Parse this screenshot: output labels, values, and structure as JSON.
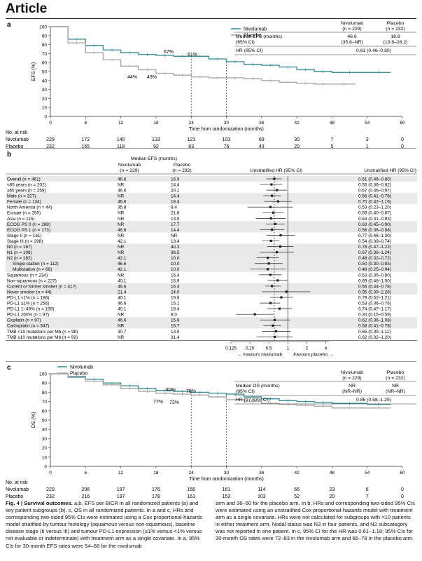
{
  "article_label": "Article",
  "panel_a": {
    "letter": "a",
    "legend": [
      "Nivolumab",
      "Placebo"
    ],
    "ylabel": "EFS (%)",
    "xlabel": "Time from randomization (months)",
    "xticks": [
      "0",
      "6",
      "12",
      "18",
      "24",
      "30",
      "36",
      "42",
      "48",
      "54",
      "60"
    ],
    "yticks": [
      "0",
      "10",
      "20",
      "30",
      "40",
      "50",
      "60",
      "70",
      "80",
      "90",
      "100"
    ],
    "annotations": [
      "67%",
      "61%",
      "44%",
      "43%"
    ],
    "summary_table": {
      "col_nivo": "Nivolumab",
      "col_nivo_n": "(n = 229)",
      "col_pbo": "Placebo",
      "col_pbo_n": "(n = 232)",
      "row1_label": "Median EFS (months)",
      "row1_label2": "(95% CI)",
      "row1_nivo": "46.6",
      "row1_nivo2": "(35.8–NR)",
      "row1_pbo": "16.9",
      "row1_pbo2": "(13.6–28.2)",
      "row2_label": "HR (95% CI)",
      "row2_value": "0.61 (0.46–0.80)"
    },
    "risk_title": "No. at risk",
    "risk_nivo_label": "Nivolumab",
    "risk_pbo_label": "Placebo",
    "risk_nivo": [
      "229",
      "172",
      "140",
      "133",
      "123",
      "103",
      "69",
      "30",
      "7",
      "3",
      "0"
    ],
    "risk_pbo": [
      "232",
      "165",
      "118",
      "92",
      "83",
      "76",
      "43",
      "20",
      "5",
      "1",
      "0"
    ]
  },
  "panel_b": {
    "letter": "b",
    "header_group": "Median EFS (months)",
    "header_nivo": "Nivolumab",
    "header_nivo_n": "(n = 229)",
    "header_pbo": "Placebo",
    "header_pbo_n": "(n = 232)",
    "header_hr_plot": "Unstratified HR (95% CI)",
    "header_hr_text": "Unstratified HR (95% CI)",
    "axis_ticks": [
      "0.125",
      "0.25",
      "0.5",
      "1",
      "2",
      "4"
    ],
    "favours_nivo": "Favours nivolumab",
    "favours_pbo": "Favours placebo",
    "rows": [
      {
        "label": "Overall (n = 461)",
        "nivo": "46.6",
        "pbo": "16.9",
        "hr": "0.61 (0.46–0.80)",
        "est": 0.61,
        "lo": 0.46,
        "hi": 0.8,
        "shade": true
      },
      {
        "label": "<65 years (n = 202)",
        "nivo": "NR",
        "pbo": "14.4",
        "hr": "0.55 (0.36–0.82)",
        "est": 0.55,
        "lo": 0.36,
        "hi": 0.82,
        "shade": false
      },
      {
        "label": "≥65 years (n = 259)",
        "nivo": "46.6",
        "pbo": "20.1",
        "hr": "0.67 (0.46–0.97)",
        "est": 0.67,
        "lo": 0.46,
        "hi": 0.97,
        "shade": false
      },
      {
        "label": "Male (n = 327)",
        "nivo": "NR",
        "pbo": "14.4",
        "hr": "0.56 (0.41–0.78)",
        "est": 0.56,
        "lo": 0.41,
        "hi": 0.78,
        "shade": true
      },
      {
        "label": "Female (n = 134)",
        "nivo": "46.6",
        "pbo": "18.4",
        "hr": "0.70 (0.42–1.16)",
        "est": 0.7,
        "lo": 0.42,
        "hi": 1.16,
        "shade": true
      },
      {
        "label": "North America (n = 44)",
        "nivo": "35.8",
        "pbo": "9.4",
        "hr": "0.53 (0.23–1.20)",
        "est": 0.53,
        "lo": 0.23,
        "hi": 1.2,
        "shade": false
      },
      {
        "label": "Europe (n = 250)",
        "nivo": "NR",
        "pbo": "21.8",
        "hr": "0.59 (0.40–0.87)",
        "est": 0.59,
        "lo": 0.4,
        "hi": 0.87,
        "shade": false
      },
      {
        "label": "Asia (n = 115)",
        "nivo": "NR",
        "pbo": "13.9",
        "hr": "0.54 (0.31–0.93)",
        "est": 0.54,
        "lo": 0.31,
        "hi": 0.93,
        "shade": false
      },
      {
        "label": "ECOG PS 0 (n = 288)",
        "nivo": "NR",
        "pbo": "17.7",
        "hr": "0.63 (0.45–0.90)",
        "est": 0.63,
        "lo": 0.45,
        "hi": 0.9,
        "shade": true
      },
      {
        "label": "ECOG PS 1 (n = 173)",
        "nivo": "46.6",
        "pbo": "14.4",
        "hr": "0.56 (0.36–0.88)",
        "est": 0.56,
        "lo": 0.36,
        "hi": 0.88,
        "shade": true
      },
      {
        "label": "Stage II (n = 161)",
        "nivo": "NR",
        "pbo": "NR",
        "hr": "0.77 (0.46–1.30)",
        "est": 0.77,
        "lo": 0.46,
        "hi": 1.3,
        "shade": false
      },
      {
        "label": "Stage III (n = 298)",
        "nivo": "42.1",
        "pbo": "13.4",
        "hr": "0.54 (0.39–0.74)",
        "est": 0.54,
        "lo": 0.39,
        "hi": 0.74,
        "shade": false
      },
      {
        "label": "N0 (n = 167)",
        "nivo": "NR",
        "pbo": "40.3",
        "hr": "0.76 (0.47–1.22)",
        "est": 0.76,
        "lo": 0.47,
        "hi": 1.22,
        "shade": true
      },
      {
        "label": "N1 (n = 108)",
        "nivo": "NR",
        "pbo": "36.5",
        "hr": "0.67 (0.36–1.24)",
        "est": 0.67,
        "lo": 0.36,
        "hi": 1.24,
        "shade": true
      },
      {
        "label": "N2 (n = 182)",
        "nivo": "42.1",
        "pbo": "10.0",
        "hr": "0.48 (0.32–0.72)",
        "est": 0.48,
        "lo": 0.32,
        "hi": 0.72,
        "shade": true
      },
      {
        "label": "Single-station (n = 112)",
        "nivo": "46.6",
        "pbo": "10.0",
        "hr": "0.50 (0.30–0.83)",
        "est": 0.5,
        "lo": 0.3,
        "hi": 0.83,
        "shade": true,
        "indent": true
      },
      {
        "label": "Multistation (n = 69)",
        "nivo": "42.1",
        "pbo": "10.0",
        "hr": "0.48 (0.25–0.94)",
        "est": 0.48,
        "lo": 0.25,
        "hi": 0.94,
        "shade": true,
        "indent": true
      },
      {
        "label": "Squamous (n = 234)",
        "nivo": "NR",
        "pbo": "16.4",
        "hr": "0.53 (0.35–0.80)",
        "est": 0.53,
        "lo": 0.35,
        "hi": 0.8,
        "shade": false
      },
      {
        "label": "Non-squamous (n = 227)",
        "nivo": "40.1",
        "pbo": "16.9",
        "hr": "0.69 (0.48–1.00)",
        "est": 0.69,
        "lo": 0.48,
        "hi": 1.0,
        "shade": false
      },
      {
        "label": "Current or former smoker (n = 417)",
        "nivo": "46.6",
        "pbo": "16.3",
        "hr": "0.56 (0.44–0.78)",
        "est": 0.56,
        "lo": 0.44,
        "hi": 0.78,
        "shade": true
      },
      {
        "label": "Never smoker (n = 44)",
        "nivo": "21.4",
        "pbo": "24.0",
        "hr": "0.95 (0.39–2.28)",
        "est": 0.95,
        "lo": 0.39,
        "hi": 2.28,
        "shade": true
      },
      {
        "label": "PD-L1 <1% (n = 186)",
        "nivo": "40.1",
        "pbo": "19.8",
        "hr": "0.79 (0.52–1.21)",
        "est": 0.79,
        "lo": 0.52,
        "hi": 1.21,
        "shade": false
      },
      {
        "label": "PD-L1 ≥1% (n = 256)",
        "nivo": "46.6",
        "pbo": "15.1",
        "hr": "0.53 (0.36–0.76)",
        "est": 0.53,
        "lo": 0.36,
        "hi": 0.76,
        "shade": false
      },
      {
        "label": "PD-L1 1–49% (n = 159)",
        "nivo": "40.1",
        "pbo": "18.4",
        "hr": "0.74 (0.47–1.17)",
        "est": 0.74,
        "lo": 0.47,
        "hi": 1.17,
        "shade": false
      },
      {
        "label": "PD-L1 ≥50% (n = 97)",
        "nivo": "NR",
        "pbo": "8.0",
        "hr": "0.30 (0.15–0.59)",
        "est": 0.3,
        "lo": 0.15,
        "hi": 0.59,
        "shade": false
      },
      {
        "label": "Cisplatin (n = 97)",
        "nivo": "46.6",
        "pbo": "15.8",
        "hr": "0.62 (0.36–1.08)",
        "est": 0.62,
        "lo": 0.36,
        "hi": 1.08,
        "shade": true
      },
      {
        "label": "Carboplatin (n = 347)",
        "nivo": "NR",
        "pbo": "16.7",
        "hr": "0.58 (0.41–0.78)",
        "est": 0.58,
        "lo": 0.41,
        "hi": 0.78,
        "shade": true
      },
      {
        "label": "TMB <10 mutations per Mb (n = 98)",
        "nivo": "30.7",
        "pbo": "13.9",
        "hr": "0.65 (0.39–1.11)",
        "est": 0.65,
        "lo": 0.39,
        "hi": 1.11,
        "shade": false
      },
      {
        "label": "TMB ≥10 mutations per Mb (n = 92)",
        "nivo": "NR",
        "pbo": "31.4",
        "hr": "0.62 (0.32–1.20)",
        "est": 0.62,
        "lo": 0.32,
        "hi": 1.2,
        "shade": false
      }
    ]
  },
  "panel_c": {
    "letter": "c",
    "legend": [
      "Nivolumab",
      "Placebo"
    ],
    "ylabel": "OS (%)",
    "xlabel": "Time from randomization (months)",
    "xticks": [
      "0",
      "6",
      "12",
      "18",
      "24",
      "30",
      "36",
      "42",
      "48",
      "54",
      "60"
    ],
    "yticks": [
      "0",
      "10",
      "20",
      "30",
      "40",
      "50",
      "60",
      "70",
      "80",
      "90",
      "100"
    ],
    "annotations": [
      "80%",
      "78%",
      "77%",
      "72%"
    ],
    "summary_table": {
      "col_nivo": "Nivolumab",
      "col_nivo_n": "(n = 229)",
      "col_pbo": "Placebo",
      "col_pbo_n": "(n = 232)",
      "row1_label": "Median OS (months)",
      "row1_label2": "(95% CI)",
      "row1_nivo": "NR",
      "row1_nivo2": "(NR–NR)",
      "row1_pbo": "NR",
      "row1_pbo2": "(NR–NR)",
      "row2_label": "HR (97.63% CI)",
      "row2_value": "0.85 (0.58–1.25)"
    },
    "risk_title": "No. at risk",
    "risk_nivo_label": "Nivolumab",
    "risk_pbo_label": "Placebo",
    "risk_nivo": [
      "229",
      "206",
      "187",
      "176",
      "166",
      "161",
      "114",
      "66",
      "23",
      "6",
      "0"
    ],
    "risk_pbo": [
      "232",
      "216",
      "197",
      "178",
      "161",
      "152",
      "103",
      "52",
      "20",
      "7",
      "0"
    ]
  },
  "caption": {
    "fig": "Fig. 4 | Survival outcomes.",
    "col1": "a,b, EFS per BICR in all randomized patients (a) and key patient subgroups (b). c, OS in all randomized patients. In a and c, HRs and corresponding two-sided 95% CIs were estimated using a Cox proportional-hazards model stratified by tumour histology (squamous versus non-squamous), baseline disease stage (II versus III) and tumour PD-L1 expression (≥1% versus <1% versus not evaluable or indeterminate) with treatment arm as a single covariate. In a, 95% CIs for 30-month EFS rates were 54–68 for the nivolumab",
    "col2": "arm and 36–50 for the placebo arm. In b, HRs and corresponding two-sided 95% CIs were estimated using an unstratified Cox proportional-hazards model with treatment arm as a single covariate. HRs were not calculated for subgroups with <10 patients in either treatment arm. Nodal status was N3 in four patients, and N2 subcategory was not reported in one patient. In c, 95% CI for the HR was 0.61–1.18; 95% CIs for 30-month OS rates were 72–83 in the nivolumab arm and 66–78 in the placebo arm."
  },
  "colors": {
    "nivolumab": "#3f8f9a",
    "placebo": "#a9a9a9",
    "shade": "#e9e9e9",
    "text": "#111111"
  },
  "chart_data": [
    {
      "type": "line",
      "xlabel": "Time from randomization (months)",
      "ylabel": "EFS (%)",
      "xlim": [
        0,
        60
      ],
      "ylim": [
        0,
        100
      ],
      "series": [
        {
          "name": "Nivolumab",
          "x": [
            0,
            3,
            6,
            9,
            12,
            15,
            18,
            21,
            24,
            27,
            30,
            33,
            36,
            39,
            42,
            45,
            48,
            54,
            58
          ],
          "y": [
            100,
            86,
            79,
            74,
            71,
            69,
            68,
            67,
            67,
            64,
            61,
            58,
            57,
            55,
            52,
            50,
            49,
            49,
            49
          ]
        },
        {
          "name": "Placebo",
          "x": [
            0,
            3,
            6,
            9,
            12,
            15,
            18,
            21,
            24,
            27,
            30,
            33,
            36,
            39,
            42,
            45,
            48,
            52
          ],
          "y": [
            100,
            82,
            71,
            63,
            56,
            52,
            48,
            46,
            44,
            43,
            43,
            42,
            40,
            38,
            37,
            36,
            36,
            36
          ]
        }
      ]
    },
    {
      "type": "table",
      "title": "Median EFS (months) / Unstratified HR (95% CI)",
      "xscale": "log",
      "xticks": [
        0.125,
        0.25,
        0.5,
        1,
        2,
        4
      ],
      "xlim": [
        0.125,
        4.5
      ]
    },
    {
      "type": "line",
      "xlabel": "Time from randomization (months)",
      "ylabel": "OS (%)",
      "xlim": [
        0,
        60
      ],
      "ylim": [
        0,
        100
      ],
      "series": [
        {
          "name": "Nivolumab",
          "x": [
            0,
            3,
            6,
            9,
            12,
            15,
            18,
            21,
            24,
            27,
            30,
            33,
            36,
            39,
            42,
            45,
            48,
            54,
            58
          ],
          "y": [
            100,
            97,
            94,
            90,
            87,
            84,
            82,
            81,
            80,
            79,
            78,
            75,
            73,
            71,
            70,
            69,
            68,
            67,
            67
          ]
        },
        {
          "name": "Placebo",
          "x": [
            0,
            3,
            6,
            9,
            12,
            15,
            18,
            21,
            24,
            27,
            30,
            33,
            36,
            39,
            42,
            45,
            48,
            54,
            58
          ],
          "y": [
            100,
            96,
            92,
            88,
            84,
            81,
            79,
            78,
            77,
            75,
            72,
            70,
            68,
            67,
            66,
            65,
            63,
            63,
            63
          ]
        }
      ]
    }
  ]
}
